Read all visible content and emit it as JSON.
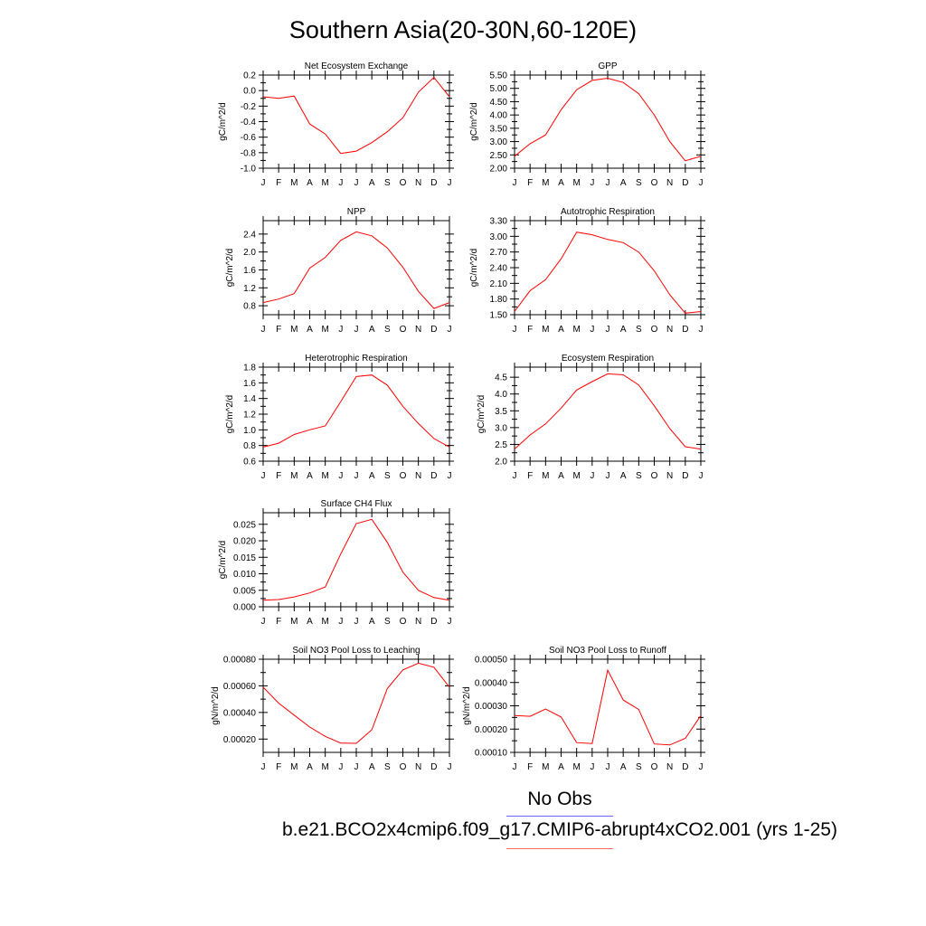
{
  "title": "Southern Asia(20-30N,60-120E)",
  "legend": {
    "obs_label": "No Obs",
    "obs_color": "#6666ff",
    "model_label": "b.e21.BCO2x4cmip6.f09_g17.CMIP6-abrupt4xCO2.001 (yrs 1-25)",
    "model_color": "#ff6666"
  },
  "series_color": "#ff0000",
  "chart_data": [
    {
      "type": "line",
      "title": "Net Ecosystem Exchange",
      "ylabel": "gC/m^2/d",
      "x": [
        "J",
        "F",
        "M",
        "A",
        "M",
        "J",
        "J",
        "A",
        "S",
        "O",
        "N",
        "D",
        "J"
      ],
      "values": [
        -0.08,
        -0.1,
        -0.07,
        -0.43,
        -0.56,
        -0.81,
        -0.78,
        -0.67,
        -0.53,
        -0.35,
        -0.02,
        0.17,
        -0.08
      ],
      "ylim": [
        -1.0,
        0.2
      ],
      "yticks": [
        -1.0,
        -0.8,
        -0.6,
        -0.4,
        -0.2,
        0.0,
        0.2
      ],
      "ytick_labels": [
        "-1.0",
        "-0.8",
        "-0.6",
        "-0.4",
        "-0.2",
        "0.0",
        "0.2"
      ],
      "grid": false
    },
    {
      "type": "line",
      "title": "GPP",
      "ylabel": "gC/m^2/d",
      "x": [
        "J",
        "F",
        "M",
        "A",
        "M",
        "J",
        "J",
        "A",
        "S",
        "O",
        "N",
        "D",
        "J"
      ],
      "values": [
        2.45,
        2.92,
        3.25,
        4.2,
        4.95,
        5.3,
        5.38,
        5.22,
        4.8,
        4.0,
        3.0,
        2.28,
        2.45
      ],
      "ylim": [
        2.0,
        5.5
      ],
      "yticks": [
        2.0,
        2.5,
        3.0,
        3.5,
        4.0,
        4.5,
        5.0,
        5.5
      ],
      "ytick_labels": [
        "2.00",
        "2.50",
        "3.00",
        "3.50",
        "4.00",
        "4.50",
        "5.00",
        "5.50"
      ],
      "grid": false
    },
    {
      "type": "line",
      "title": "NPP",
      "ylabel": "gC/m^2/d",
      "x": [
        "J",
        "F",
        "M",
        "A",
        "M",
        "J",
        "J",
        "A",
        "S",
        "O",
        "N",
        "D",
        "J"
      ],
      "values": [
        0.87,
        0.95,
        1.07,
        1.64,
        1.88,
        2.26,
        2.45,
        2.36,
        2.09,
        1.66,
        1.12,
        0.74,
        0.87
      ],
      "ylim": [
        0.6,
        2.7
      ],
      "yticks": [
        0.8,
        1.2,
        1.6,
        2.0,
        2.4
      ],
      "ytick_labels": [
        "0.8",
        "1.2",
        "1.6",
        "2.0",
        "2.4"
      ],
      "grid": false
    },
    {
      "type": "line",
      "title": "Autotrophic Respiration",
      "ylabel": "gC/m^2/d",
      "x": [
        "J",
        "F",
        "M",
        "A",
        "M",
        "J",
        "J",
        "A",
        "S",
        "O",
        "N",
        "D",
        "J"
      ],
      "values": [
        1.56,
        1.96,
        2.17,
        2.57,
        3.08,
        3.03,
        2.94,
        2.88,
        2.7,
        2.34,
        1.88,
        1.53,
        1.56
      ],
      "ylim": [
        1.5,
        3.3
      ],
      "yticks": [
        1.5,
        1.8,
        2.1,
        2.4,
        2.7,
        3.0,
        3.3
      ],
      "ytick_labels": [
        "1.50",
        "1.80",
        "2.10",
        "2.40",
        "2.70",
        "3.00",
        "3.30"
      ],
      "grid": false
    },
    {
      "type": "line",
      "title": "Heterotrophic Respiration",
      "ylabel": "gC/m^2/d",
      "x": [
        "J",
        "F",
        "M",
        "A",
        "M",
        "J",
        "J",
        "A",
        "S",
        "O",
        "N",
        "D",
        "J"
      ],
      "values": [
        0.78,
        0.83,
        0.94,
        1.0,
        1.05,
        1.36,
        1.68,
        1.7,
        1.57,
        1.3,
        1.08,
        0.89,
        0.78
      ],
      "ylim": [
        0.6,
        1.8
      ],
      "yticks": [
        0.6,
        0.8,
        1.0,
        1.2,
        1.4,
        1.6,
        1.8
      ],
      "ytick_labels": [
        "0.6",
        "0.8",
        "1.0",
        "1.2",
        "1.4",
        "1.6",
        "1.8"
      ],
      "grid": false
    },
    {
      "type": "line",
      "title": "Ecosystem Respiration",
      "ylabel": "gC/m^2/d",
      "x": [
        "J",
        "F",
        "M",
        "A",
        "M",
        "J",
        "J",
        "A",
        "S",
        "O",
        "N",
        "D",
        "J"
      ],
      "values": [
        2.36,
        2.78,
        3.11,
        3.58,
        4.12,
        4.37,
        4.6,
        4.57,
        4.27,
        3.65,
        2.97,
        2.43,
        2.36
      ],
      "ylim": [
        2.0,
        4.8
      ],
      "yticks": [
        2.0,
        2.5,
        3.0,
        3.5,
        4.0,
        4.5
      ],
      "ytick_labels": [
        "2.0",
        "2.5",
        "3.0",
        "3.5",
        "4.0",
        "4.5"
      ],
      "grid": false
    },
    {
      "type": "line",
      "title": "Surface CH4 Flux",
      "ylabel": "gC/m^2/d",
      "x": [
        "J",
        "F",
        "M",
        "A",
        "M",
        "J",
        "J",
        "A",
        "S",
        "O",
        "N",
        "D",
        "J"
      ],
      "values": [
        0.002,
        0.0022,
        0.003,
        0.0042,
        0.006,
        0.016,
        0.0252,
        0.0265,
        0.0195,
        0.0105,
        0.005,
        0.0028,
        0.002
      ],
      "ylim": [
        0.0,
        0.0285
      ],
      "yticks": [
        0.0,
        0.005,
        0.01,
        0.015,
        0.02,
        0.025
      ],
      "ytick_labels": [
        "0.000",
        "0.005",
        "0.010",
        "0.015",
        "0.020",
        "0.025"
      ],
      "grid": false
    },
    {
      "type": "line",
      "title": "Soil NO3 Pool Loss to Leaching",
      "ylabel": "gN/m^2/d",
      "x": [
        "J",
        "F",
        "M",
        "A",
        "M",
        "J",
        "J",
        "A",
        "S",
        "O",
        "N",
        "D",
        "J"
      ],
      "values": [
        0.00059,
        0.00047,
        0.00038,
        0.00029,
        0.00022,
        0.00017,
        0.000168,
        0.00027,
        0.00058,
        0.00072,
        0.00077,
        0.00074,
        0.00059
      ],
      "ylim": [
        0.0001,
        0.0008
      ],
      "yticks": [
        0.0002,
        0.0004,
        0.0006,
        0.0008
      ],
      "ytick_labels": [
        "0.00020",
        "0.00040",
        "0.00060",
        "0.00080"
      ],
      "grid": false
    },
    {
      "type": "line",
      "title": "Soil NO3 Pool Loss to Runoff",
      "ylabel": "gN/m^2/d",
      "x": [
        "J",
        "F",
        "M",
        "A",
        "M",
        "J",
        "J",
        "A",
        "S",
        "O",
        "N",
        "D",
        "J"
      ],
      "values": [
        0.000258,
        0.000255,
        0.000286,
        0.000252,
        0.000142,
        0.000138,
        0.000453,
        0.000325,
        0.000284,
        0.000136,
        0.000132,
        0.00016,
        0.000258
      ],
      "ylim": [
        0.0001,
        0.0005
      ],
      "yticks": [
        0.0001,
        0.0002,
        0.0003,
        0.0004,
        0.0005
      ],
      "ytick_labels": [
        "0.00010",
        "0.00020",
        "0.00030",
        "0.00040",
        "0.00050"
      ],
      "grid": false
    }
  ]
}
